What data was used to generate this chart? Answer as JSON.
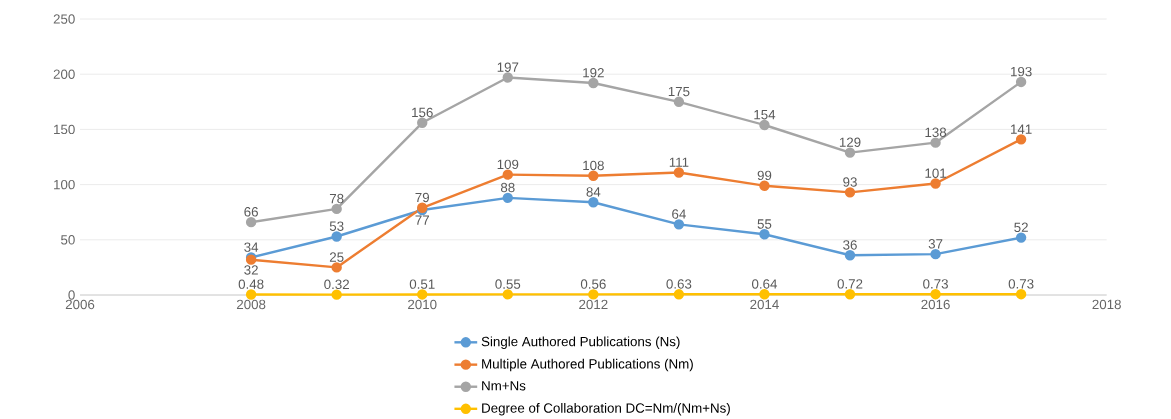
{
  "chart_data": {
    "type": "line",
    "x": [
      2008,
      2009,
      2010,
      2011,
      2012,
      2013,
      2014,
      2015,
      2016,
      2017
    ],
    "series": [
      {
        "name": "Single Authored Publications (Ns)",
        "color": "#5b9bd5",
        "values": [
          34,
          53,
          77,
          88,
          84,
          64,
          55,
          36,
          37,
          52
        ]
      },
      {
        "name": "Multiple Authored Publications (Nm)",
        "color": "#ed7d31",
        "values": [
          32,
          25,
          79,
          109,
          108,
          111,
          99,
          93,
          101,
          141
        ]
      },
      {
        "name": "Nm+Ns",
        "color": "#a5a5a5",
        "values": [
          66,
          78,
          156,
          197,
          192,
          175,
          154,
          129,
          138,
          193
        ]
      },
      {
        "name": "Degree of Collaboration DC=Nm/(Nm+Ns)",
        "color": "#ffc000",
        "values": [
          0.48,
          0.32,
          0.51,
          0.55,
          0.56,
          0.63,
          0.64,
          0.72,
          0.73,
          0.73
        ]
      }
    ],
    "xlim": [
      2006,
      2018
    ],
    "xticks": [
      2006,
      2008,
      2010,
      2012,
      2014,
      2016,
      2018
    ],
    "ylim": [
      0,
      250
    ],
    "yticks": [
      0,
      50,
      100,
      150,
      200,
      250
    ],
    "grid": "y",
    "legend": "bottom",
    "marker": "circle",
    "line_style": "solid",
    "data_labels": true
  }
}
